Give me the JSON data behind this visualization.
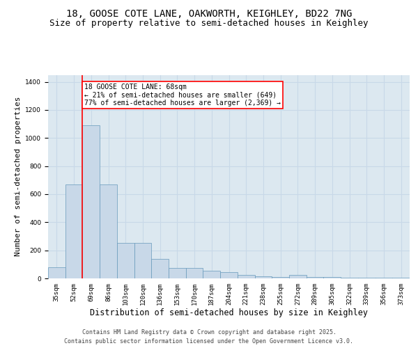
{
  "title_line1": "18, GOOSE COTE LANE, OAKWORTH, KEIGHLEY, BD22 7NG",
  "title_line2": "Size of property relative to semi-detached houses in Keighley",
  "xlabel": "Distribution of semi-detached houses by size in Keighley",
  "ylabel": "Number of semi-detached properties",
  "categories": [
    "35sqm",
    "52sqm",
    "69sqm",
    "86sqm",
    "103sqm",
    "120sqm",
    "136sqm",
    "153sqm",
    "170sqm",
    "187sqm",
    "204sqm",
    "221sqm",
    "238sqm",
    "255sqm",
    "272sqm",
    "289sqm",
    "305sqm",
    "322sqm",
    "339sqm",
    "356sqm",
    "373sqm"
  ],
  "values": [
    80,
    670,
    1090,
    670,
    255,
    255,
    140,
    75,
    75,
    55,
    45,
    25,
    15,
    10,
    25,
    10,
    10,
    5,
    5,
    5,
    5
  ],
  "bar_color": "#c8d8e8",
  "bar_edge_color": "#6699bb",
  "annotation_text_line1": "18 GOOSE COTE LANE: 68sqm",
  "annotation_text_line2": "← 21% of semi-detached houses are smaller (649)",
  "annotation_text_line3": "77% of semi-detached houses are larger (2,369) →",
  "annotation_box_color": "white",
  "annotation_box_edge": "red",
  "vline_color": "red",
  "vline_x_idx": 2,
  "ylim": [
    0,
    1450
  ],
  "yticks": [
    0,
    200,
    400,
    600,
    800,
    1000,
    1200,
    1400
  ],
  "grid_color": "#c8d8e8",
  "background_color": "#dce8f0",
  "footer_line1": "Contains HM Land Registry data © Crown copyright and database right 2025.",
  "footer_line2": "Contains public sector information licensed under the Open Government Licence v3.0.",
  "title_fontsize": 10,
  "subtitle_fontsize": 9,
  "axis_label_fontsize": 8,
  "tick_fontsize": 6.5,
  "annotation_fontsize": 7,
  "footer_fontsize": 6
}
